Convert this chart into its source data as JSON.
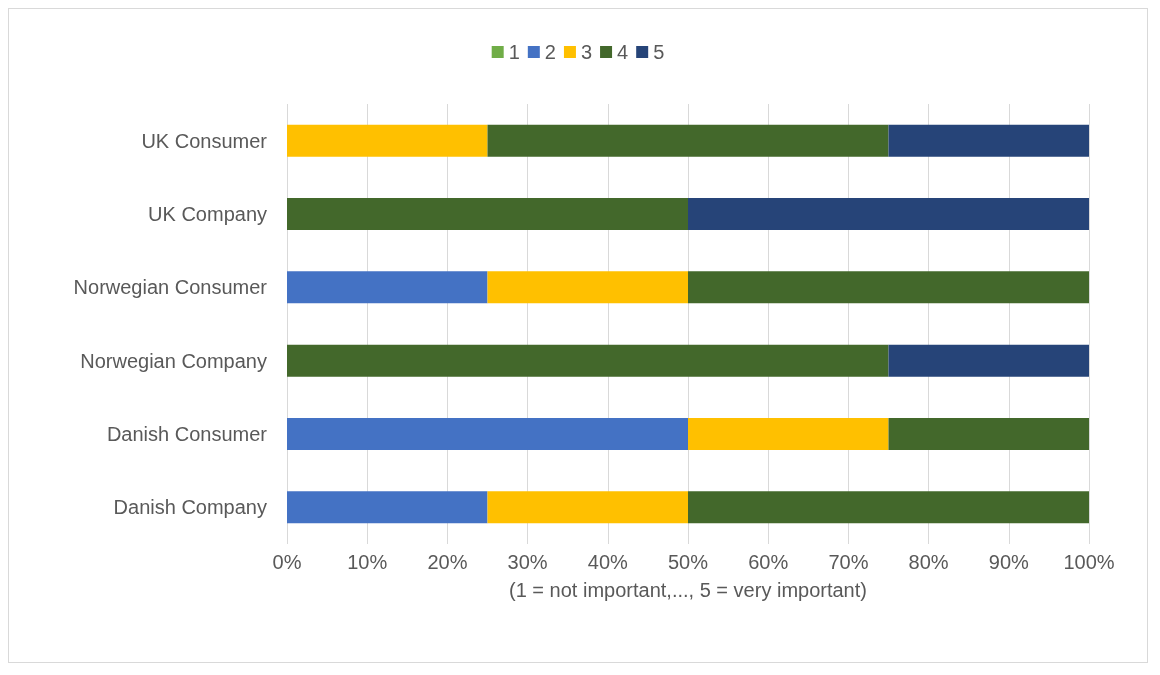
{
  "chart_data": {
    "type": "bar",
    "orientation": "horizontal",
    "stacked": true,
    "categories": [
      "UK Consumer",
      "UK Company",
      "Norwegian Consumer",
      "Norwegian Company",
      "Danish Consumer",
      "Danish Company"
    ],
    "series": [
      {
        "name": "1",
        "color": "#70ad47",
        "values": [
          0,
          0,
          0,
          0,
          0,
          0
        ]
      },
      {
        "name": "2",
        "color": "#4472c4",
        "values": [
          0,
          0,
          25,
          0,
          50,
          25
        ]
      },
      {
        "name": "3",
        "color": "#ffc000",
        "values": [
          25,
          0,
          25,
          0,
          25,
          25
        ]
      },
      {
        "name": "4",
        "color": "#43682b",
        "values": [
          50,
          50,
          50,
          75,
          25,
          50
        ]
      },
      {
        "name": "5",
        "color": "#264478",
        "values": [
          25,
          50,
          0,
          25,
          0,
          0
        ]
      }
    ],
    "xlabel": "(1 = not important,..., 5 = very important)",
    "xlim": [
      0,
      100
    ],
    "xticks": [
      {
        "value": 0,
        "label": "0%"
      },
      {
        "value": 10,
        "label": "10%"
      },
      {
        "value": 20,
        "label": "20%"
      },
      {
        "value": 30,
        "label": "30%"
      },
      {
        "value": 40,
        "label": "40%"
      },
      {
        "value": 50,
        "label": "50%"
      },
      {
        "value": 60,
        "label": "60%"
      },
      {
        "value": 70,
        "label": "70%"
      },
      {
        "value": 80,
        "label": "80%"
      },
      {
        "value": 90,
        "label": "90%"
      },
      {
        "value": 100,
        "label": "100%"
      }
    ],
    "grid": "x",
    "legend": "top"
  }
}
